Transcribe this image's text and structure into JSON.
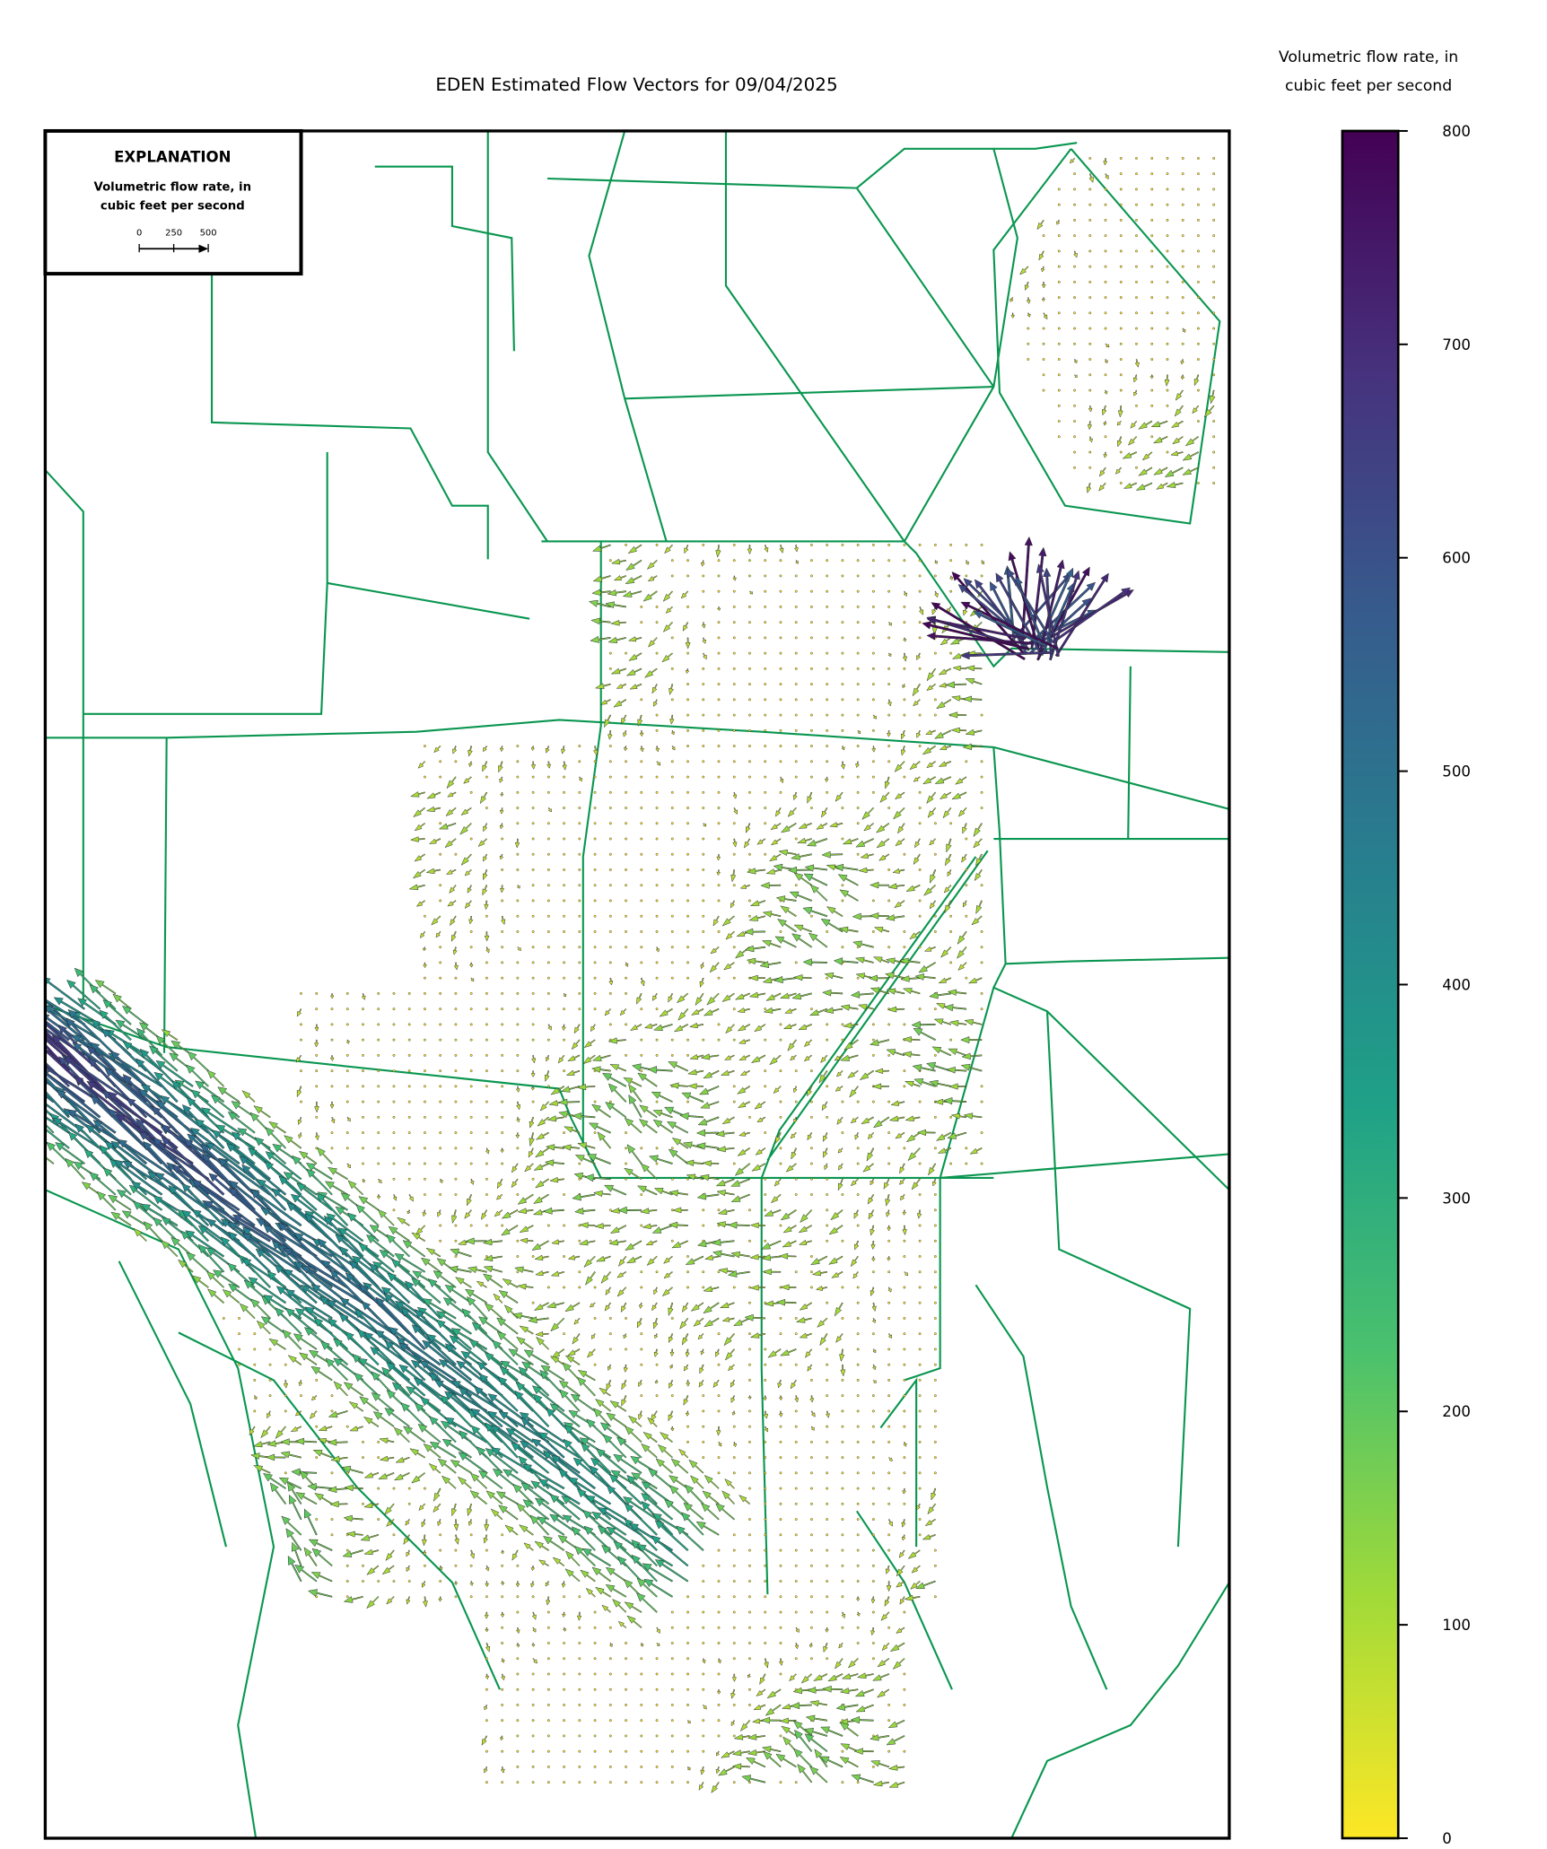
{
  "chart_data": {
    "type": "quiver",
    "title": "EDEN Estimated Flow Vectors for 09/04/2025",
    "colorbar": {
      "label": [
        "Volumetric flow rate, in",
        "cubic feet per second"
      ],
      "lim": [
        0,
        800
      ],
      "ticks": [
        0,
        100,
        200,
        300,
        400,
        500,
        600,
        700,
        800
      ],
      "colors": [
        "#fde725",
        "#a0da39",
        "#4ac16d",
        "#1fa187",
        "#277f8e",
        "#365c8d",
        "#46327e",
        "#440154"
      ]
    },
    "explanation": {
      "title": "EXPLANATION",
      "label": [
        "Volumetric flow rate, in",
        "cubic feet per second"
      ],
      "scale_ticks": [
        0,
        250,
        500
      ]
    }
  }
}
